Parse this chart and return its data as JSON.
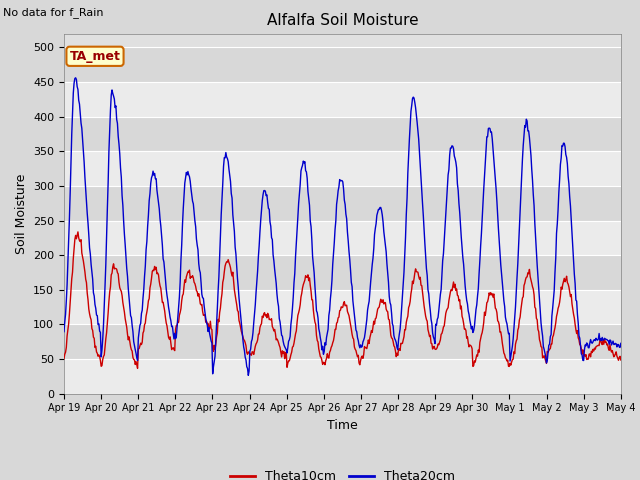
{
  "title": "Alfalfa Soil Moisture",
  "xlabel": "Time",
  "ylabel": "Soil Moisture",
  "top_label": "No data for f_Rain",
  "legend_label": "TA_met",
  "ylim": [
    0,
    520
  ],
  "yticks": [
    0,
    50,
    100,
    150,
    200,
    250,
    300,
    350,
    400,
    450,
    500
  ],
  "background_color": "#d8d8d8",
  "plot_bg_color": "#e0e0e0",
  "line1_color": "#cc0000",
  "line2_color": "#0000cc",
  "line1_label": "Theta10cm",
  "line2_label": "Theta20cm",
  "legend_box_color": "#ffffcc",
  "legend_box_edge": "#cc6600",
  "tick_labels": [
    "Apr 19",
    "Apr 20",
    "Apr 21",
    "Apr 22",
    "Apr 23",
    "Apr 24",
    "Apr 25",
    "Apr 26",
    "Apr 27",
    "Apr 28",
    "Apr 29",
    "Apr 30",
    "May 1",
    "May 2",
    "May 3",
    "May 4"
  ],
  "red_peaks": [
    230,
    185,
    180,
    175,
    190,
    115,
    170,
    130,
    135,
    175,
    155,
    145,
    175,
    165,
    75
  ],
  "red_troughs": [
    40,
    30,
    55,
    90,
    50,
    50,
    35,
    40,
    50,
    55,
    60,
    35,
    35,
    50,
    50
  ],
  "blue_peaks": [
    455,
    435,
    320,
    320,
    347,
    293,
    337,
    310,
    268,
    430,
    358,
    383,
    395,
    363,
    80
  ],
  "blue_troughs": [
    65,
    28,
    70,
    62,
    10,
    48,
    42,
    48,
    53,
    55,
    78,
    68,
    25,
    28,
    68
  ],
  "red_peak_pos": [
    0.35,
    0.35,
    0.45,
    0.35,
    0.4,
    0.45,
    0.55,
    0.55,
    0.6,
    0.5,
    0.5,
    0.5,
    0.5,
    0.5,
    0.5
  ],
  "blue_peak_pos": [
    0.3,
    0.3,
    0.4,
    0.3,
    0.35,
    0.4,
    0.45,
    0.45,
    0.5,
    0.4,
    0.45,
    0.45,
    0.45,
    0.45,
    0.45
  ]
}
